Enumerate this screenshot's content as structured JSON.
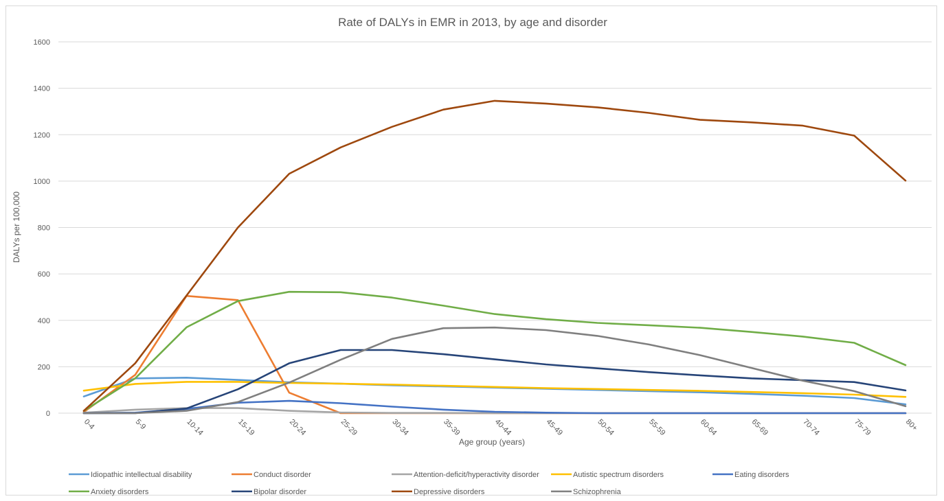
{
  "chart_data": {
    "type": "line",
    "title": "Rate of DALYs in EMR in 2013, by age and disorder",
    "xlabel": "Age group (years)",
    "ylabel": "DALYs per 100,000",
    "ylim": [
      0,
      1600
    ],
    "yticks": [
      0,
      200,
      400,
      600,
      800,
      1000,
      1200,
      1400,
      1600
    ],
    "grid": true,
    "legend_position": "bottom",
    "categories": [
      "0-4",
      "5-9",
      "10-14",
      "15-19",
      "20-24",
      "25-29",
      "30-34",
      "35-39",
      "40-44",
      "45-49",
      "50-54",
      "55-59",
      "60-64",
      "65-69",
      "70-74",
      "75-79",
      "80+"
    ],
    "series": [
      {
        "name": "Idiopathic intellectual disability",
        "color": "#5B9BD5",
        "values": [
          72,
          150,
          153,
          143,
          133,
          127,
          120,
          115,
          110,
          105,
          100,
          95,
          90,
          83,
          75,
          65,
          38
        ]
      },
      {
        "name": "Conduct disorder",
        "color": "#ED7D31",
        "values": [
          5,
          165,
          505,
          487,
          88,
          0,
          0,
          0,
          0,
          0,
          0,
          0,
          0,
          0,
          0,
          0,
          0
        ]
      },
      {
        "name": "Attention-deficit/hyperactivity disorder",
        "color": "#A5A5A5",
        "values": [
          2,
          15,
          22,
          22,
          10,
          3,
          1,
          1,
          0,
          0,
          0,
          0,
          0,
          0,
          0,
          0,
          0
        ]
      },
      {
        "name": "Autistic spectrum disorders",
        "color": "#FFC000",
        "values": [
          97,
          126,
          135,
          135,
          130,
          127,
          123,
          118,
          113,
          108,
          104,
          100,
          96,
          91,
          86,
          80,
          70
        ]
      },
      {
        "name": "Eating disorders",
        "color": "#4472C4",
        "values": [
          0,
          2,
          18,
          45,
          53,
          43,
          28,
          15,
          6,
          2,
          0,
          0,
          0,
          0,
          0,
          0,
          0
        ]
      },
      {
        "name": "Anxiety disorders",
        "color": "#70AD47",
        "values": [
          10,
          150,
          370,
          483,
          523,
          521,
          498,
          463,
          427,
          405,
          389,
          379,
          368,
          350,
          330,
          303,
          207
        ]
      },
      {
        "name": "Bipolar disorder",
        "color": "#264478",
        "values": [
          0,
          0,
          20,
          103,
          215,
          272,
          272,
          254,
          232,
          210,
          193,
          177,
          163,
          150,
          142,
          134,
          98
        ]
      },
      {
        "name": "Depressive disorders",
        "color": "#9E480E",
        "values": [
          10,
          215,
          507,
          800,
          1032,
          1145,
          1234,
          1308,
          1346,
          1334,
          1318,
          1294,
          1264,
          1253,
          1239,
          1196,
          1002
        ]
      },
      {
        "name": "Schizophrenia",
        "color": "#7F7F7F",
        "values": [
          0,
          0,
          10,
          48,
          132,
          230,
          320,
          366,
          369,
          358,
          333,
          296,
          250,
          195,
          140,
          95,
          30
        ]
      }
    ]
  }
}
